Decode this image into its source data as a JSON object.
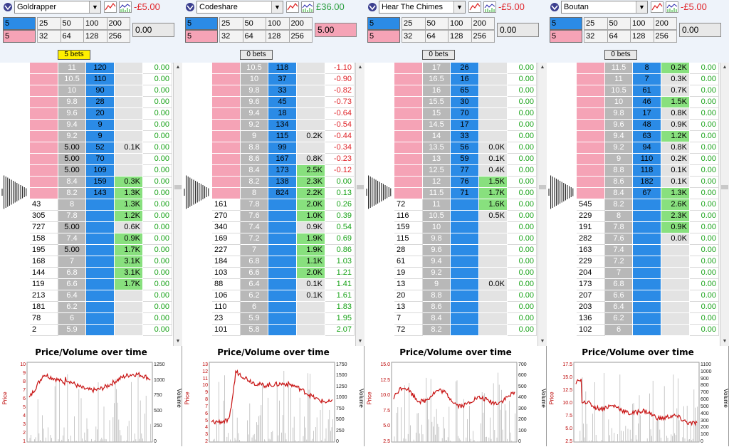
{
  "panels": [
    {
      "runner": "Goldrapper",
      "pnl": "-£5.00",
      "pnl_sign": "neg",
      "back_stake": "5",
      "lay_stake": "5",
      "stakes_row1": [
        "25",
        "50",
        "100",
        "200"
      ],
      "stakes_row2": [
        "32",
        "64",
        "128",
        "256"
      ],
      "amount": "0.00",
      "amount_highlight": false,
      "bets": "5 bets",
      "bets_highlight": true,
      "ladder": [
        [
          "",
          "11",
          "120",
          "",
          "0.00"
        ],
        [
          "",
          "10.5",
          "110",
          "",
          "0.00"
        ],
        [
          "",
          "10",
          "90",
          "",
          "0.00"
        ],
        [
          "",
          "9.8",
          "28",
          "",
          "0.00"
        ],
        [
          "",
          "9.6",
          "20",
          "",
          "0.00"
        ],
        [
          "",
          "9.4",
          "9",
          "",
          "0.00"
        ],
        [
          "",
          "9.2",
          "9",
          "",
          "0.00"
        ],
        [
          "",
          "5.00",
          "52",
          "0.1K",
          "0.00"
        ],
        [
          "",
          "5.00",
          "70",
          "",
          "0.00"
        ],
        [
          "",
          "5.00",
          "109",
          "",
          "0.00"
        ],
        [
          "",
          "8.4",
          "159",
          "0.3K",
          "0.00"
        ],
        [
          "",
          "8.2",
          "143",
          "1.3K",
          "0.00"
        ],
        [
          "43",
          "8",
          "",
          "1.3K",
          "0.00"
        ],
        [
          "305",
          "7.8",
          "",
          "1.2K",
          "0.00"
        ],
        [
          "727",
          "5.00",
          "",
          "0.6K",
          "0.00"
        ],
        [
          "158",
          "7.4",
          "",
          "0.9K",
          "0.00"
        ],
        [
          "195",
          "5.00",
          "",
          "1.7K",
          "0.00"
        ],
        [
          "168",
          "7",
          "",
          "3.1K",
          "0.00"
        ],
        [
          "144",
          "6.8",
          "",
          "3.1K",
          "0.00"
        ],
        [
          "119",
          "6.6",
          "",
          "1.7K",
          "0.00"
        ],
        [
          "213",
          "6.4",
          "",
          "",
          "0.00"
        ],
        [
          "181",
          "6.2",
          "",
          "",
          "0.00"
        ],
        [
          "78",
          "6",
          "",
          "",
          "0.00"
        ],
        [
          "2",
          "5.9",
          "",
          "",
          "0.00"
        ]
      ],
      "green_vol": [
        10,
        11,
        12,
        13,
        15,
        16,
        17,
        18,
        19
      ],
      "chart": {
        "title": "Price/Volume over time",
        "ylabel": "Price",
        "y2label": "Volume",
        "yticks": [
          "1",
          "2",
          "3",
          "4",
          "5",
          "6",
          "7",
          "8",
          "9",
          "10"
        ],
        "y2ticks": [
          "0",
          "250",
          "500",
          "750",
          "1000",
          "1250"
        ]
      }
    },
    {
      "runner": "Codeshare",
      "pnl": "£36.00",
      "pnl_sign": "pos",
      "back_stake": "5",
      "lay_stake": "5",
      "stakes_row1": [
        "25",
        "50",
        "100",
        "200"
      ],
      "stakes_row2": [
        "32",
        "64",
        "128",
        "256"
      ],
      "amount": "5.00",
      "amount_highlight": true,
      "bets": "0 bets",
      "bets_highlight": false,
      "ladder": [
        [
          "",
          "10.5",
          "118",
          "",
          "-1.10"
        ],
        [
          "",
          "10",
          "37",
          "",
          "-0.90"
        ],
        [
          "",
          "9.8",
          "33",
          "",
          "-0.82"
        ],
        [
          "",
          "9.6",
          "45",
          "",
          "-0.73"
        ],
        [
          "",
          "9.4",
          "18",
          "",
          "-0.64"
        ],
        [
          "",
          "9.2",
          "134",
          "",
          "-0.54"
        ],
        [
          "",
          "9",
          "115",
          "0.2K",
          "-0.44"
        ],
        [
          "",
          "8.8",
          "99",
          "",
          "-0.34"
        ],
        [
          "",
          "8.6",
          "167",
          "0.8K",
          "-0.23"
        ],
        [
          "",
          "8.4",
          "173",
          "2.5K",
          "-0.12"
        ],
        [
          "",
          "8.2",
          "138",
          "2.3K",
          "0.00"
        ],
        [
          "",
          "8",
          "824",
          "2.2K",
          "0.13"
        ],
        [
          "161",
          "7.8",
          "",
          "2.0K",
          "0.26"
        ],
        [
          "270",
          "7.6",
          "",
          "1.0K",
          "0.39"
        ],
        [
          "340",
          "7.4",
          "",
          "0.9K",
          "0.54"
        ],
        [
          "169",
          "7.2",
          "",
          "1.9K",
          "0.69"
        ],
        [
          "227",
          "7",
          "",
          "1.9K",
          "0.86"
        ],
        [
          "184",
          "6.8",
          "",
          "1.1K",
          "1.03"
        ],
        [
          "103",
          "6.6",
          "",
          "2.0K",
          "1.21"
        ],
        [
          "88",
          "6.4",
          "",
          "0.1K",
          "1.41"
        ],
        [
          "106",
          "6.2",
          "",
          "0.1K",
          "1.61"
        ],
        [
          "110",
          "6",
          "",
          "",
          "1.83"
        ],
        [
          "23",
          "5.9",
          "",
          "",
          "1.95"
        ],
        [
          "101",
          "5.8",
          "",
          "",
          "2.07"
        ]
      ],
      "green_vol": [
        9,
        10,
        11,
        12,
        13,
        15,
        16,
        17,
        18
      ],
      "chart": {
        "title": "Price/Volume over time",
        "ylabel": "Price",
        "y2label": "Volume",
        "yticks": [
          "2",
          "3",
          "4",
          "5",
          "6",
          "7",
          "8",
          "9",
          "10",
          "11",
          "12",
          "13"
        ],
        "y2ticks": [
          "0",
          "250",
          "500",
          "750",
          "1000",
          "1250",
          "1500",
          "1750"
        ]
      }
    },
    {
      "runner": "Hear The Chimes",
      "pnl": "-£5.00",
      "pnl_sign": "neg",
      "back_stake": "5",
      "lay_stake": "5",
      "stakes_row1": [
        "25",
        "50",
        "100",
        "200"
      ],
      "stakes_row2": [
        "32",
        "64",
        "128",
        "256"
      ],
      "amount": "0.00",
      "amount_highlight": false,
      "bets": "0 bets",
      "bets_highlight": false,
      "ladder": [
        [
          "",
          "17",
          "26",
          "",
          "0.00"
        ],
        [
          "",
          "16.5",
          "16",
          "",
          "0.00"
        ],
        [
          "",
          "16",
          "65",
          "",
          "0.00"
        ],
        [
          "",
          "15.5",
          "30",
          "",
          "0.00"
        ],
        [
          "",
          "15",
          "70",
          "",
          "0.00"
        ],
        [
          "",
          "14.5",
          "17",
          "",
          "0.00"
        ],
        [
          "",
          "14",
          "33",
          "",
          "0.00"
        ],
        [
          "",
          "13.5",
          "56",
          "0.0K",
          "0.00"
        ],
        [
          "",
          "13",
          "59",
          "0.1K",
          "0.00"
        ],
        [
          "",
          "12.5",
          "77",
          "0.4K",
          "0.00"
        ],
        [
          "",
          "12",
          "76",
          "1.5K",
          "0.00"
        ],
        [
          "",
          "11.5",
          "71",
          "1.7K",
          "0.00"
        ],
        [
          "72",
          "11",
          "",
          "1.6K",
          "0.00"
        ],
        [
          "116",
          "10.5",
          "",
          "0.5K",
          "0.00"
        ],
        [
          "159",
          "10",
          "",
          "",
          "0.00"
        ],
        [
          "115",
          "9.8",
          "",
          "",
          "0.00"
        ],
        [
          "28",
          "9.6",
          "",
          "",
          "0.00"
        ],
        [
          "61",
          "9.4",
          "",
          "",
          "0.00"
        ],
        [
          "19",
          "9.2",
          "",
          "",
          "0.00"
        ],
        [
          "13",
          "9",
          "",
          "0.0K",
          "0.00"
        ],
        [
          "20",
          "8.8",
          "",
          "",
          "0.00"
        ],
        [
          "13",
          "8.6",
          "",
          "",
          "0.00"
        ],
        [
          "7",
          "8.4",
          "",
          "",
          "0.00"
        ],
        [
          "72",
          "8.2",
          "",
          "",
          "0.00"
        ]
      ],
      "green_vol": [
        10,
        11,
        12
      ],
      "chart": {
        "title": "Price/Volume over time",
        "ylabel": "Price",
        "y2label": "Volume",
        "yticks": [
          "2.5",
          "5.0",
          "7.5",
          "10.0",
          "12.5",
          "15.0"
        ],
        "y2ticks": [
          "0",
          "100",
          "200",
          "300",
          "400",
          "500",
          "600",
          "700"
        ]
      }
    },
    {
      "runner": "Boutan",
      "pnl": "-£5.00",
      "pnl_sign": "neg",
      "back_stake": "5",
      "lay_stake": "5",
      "stakes_row1": [
        "25",
        "50",
        "100",
        "200"
      ],
      "stakes_row2": [
        "32",
        "64",
        "128",
        "256"
      ],
      "amount": "0.00",
      "amount_highlight": false,
      "bets": "0 bets",
      "bets_highlight": false,
      "ladder": [
        [
          "",
          "11.5",
          "8",
          "0.2K",
          "0.00"
        ],
        [
          "",
          "11",
          "7",
          "0.3K",
          "0.00"
        ],
        [
          "",
          "10.5",
          "61",
          "0.7K",
          "0.00"
        ],
        [
          "",
          "10",
          "46",
          "1.5K",
          "0.00"
        ],
        [
          "",
          "9.8",
          "17",
          "0.8K",
          "0.00"
        ],
        [
          "",
          "9.6",
          "48",
          "0.9K",
          "0.00"
        ],
        [
          "",
          "9.4",
          "63",
          "1.2K",
          "0.00"
        ],
        [
          "",
          "9.2",
          "94",
          "0.8K",
          "0.00"
        ],
        [
          "",
          "9",
          "110",
          "0.2K",
          "0.00"
        ],
        [
          "",
          "8.8",
          "118",
          "0.1K",
          "0.00"
        ],
        [
          "",
          "8.6",
          "182",
          "0.1K",
          "0.00"
        ],
        [
          "",
          "8.4",
          "67",
          "1.3K",
          "0.00"
        ],
        [
          "545",
          "8.2",
          "",
          "2.6K",
          "0.00"
        ],
        [
          "229",
          "8",
          "",
          "2.3K",
          "0.00"
        ],
        [
          "191",
          "7.8",
          "",
          "0.9K",
          "0.00"
        ],
        [
          "282",
          "7.6",
          "",
          "0.0K",
          "0.00"
        ],
        [
          "163",
          "7.4",
          "",
          "",
          "0.00"
        ],
        [
          "229",
          "7.2",
          "",
          "",
          "0.00"
        ],
        [
          "204",
          "7",
          "",
          "",
          "0.00"
        ],
        [
          "173",
          "6.8",
          "",
          "",
          "0.00"
        ],
        [
          "207",
          "6.6",
          "",
          "",
          "0.00"
        ],
        [
          "203",
          "6.4",
          "",
          "",
          "0.00"
        ],
        [
          "136",
          "6.2",
          "",
          "",
          "0.00"
        ],
        [
          "102",
          "6",
          "",
          "",
          "0.00"
        ]
      ],
      "green_vol": [
        0,
        3,
        6,
        11,
        12,
        13,
        14
      ],
      "chart": {
        "title": "Price/Volume over time",
        "ylabel": "Price",
        "y2label": "Volume",
        "yticks": [
          "2.5",
          "5.0",
          "7.5",
          "10.0",
          "12.5",
          "15.0",
          "17.5"
        ],
        "y2ticks": [
          "0",
          "100",
          "200",
          "300",
          "400",
          "500",
          "600",
          "700",
          "800",
          "900",
          "1000",
          "1100"
        ]
      }
    }
  ],
  "colors": {
    "back": "#2b8be6",
    "lay": "#f5a3b6",
    "price_bg": "#b8b8b8",
    "vol_green": "#88e07e",
    "pnl_neg": "#e0262b",
    "pnl_pos": "#2ea043",
    "line": "#c81414"
  },
  "icons": [
    "runner-silk-icon",
    "chevron-down-icon",
    "line-chart-icon",
    "volume-chart-icon"
  ]
}
